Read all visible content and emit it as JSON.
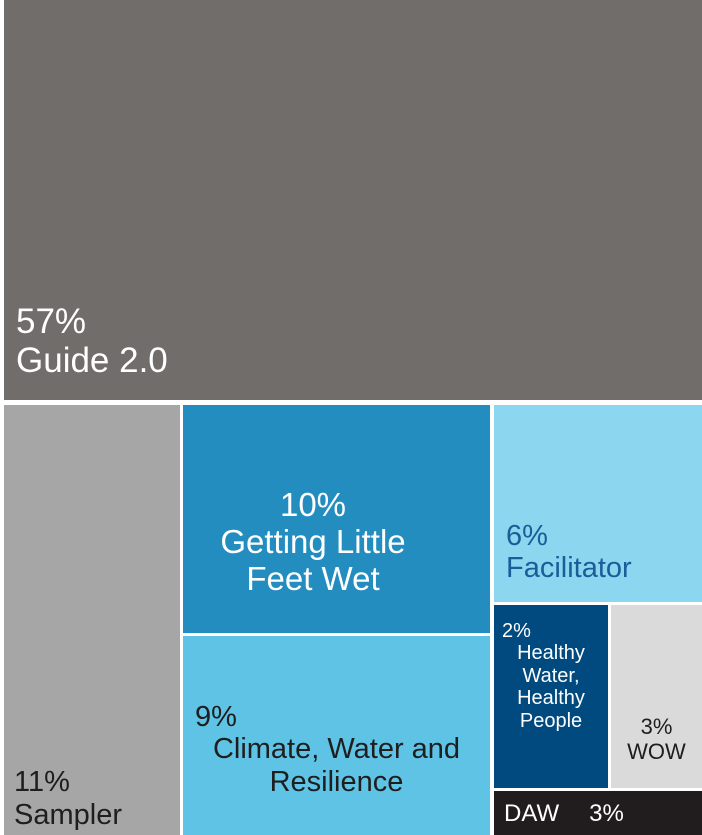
{
  "chart_data": {
    "type": "treemap",
    "title": "",
    "unit": "%",
    "cells": [
      {
        "id": "guide",
        "name": "Guide 2.0",
        "value": 57,
        "value_label": "57%",
        "color": "#716d6b",
        "text_color": "#ffffff"
      },
      {
        "id": "sampler",
        "name": "Sampler",
        "value": 11,
        "value_label": "11%",
        "color": "#a6a6a6",
        "text_color": "#1e1e1e"
      },
      {
        "id": "little-feet",
        "name": "Getting Little Feet Wet",
        "value": 10,
        "value_label": "10%",
        "color": "#238dc0",
        "text_color": "#ffffff"
      },
      {
        "id": "climate",
        "name": "Climate, Water and Resilience",
        "value": 9,
        "value_label": "9%",
        "color": "#5fc3e6",
        "text_color": "#1e1e1e"
      },
      {
        "id": "facilitator",
        "name": "Facilitator",
        "value": 6,
        "value_label": "6%",
        "color": "#8dd6f0",
        "text_color": "#1a5d99"
      },
      {
        "id": "healthy",
        "name": "Healthy Water, Healthy People",
        "value": 2,
        "value_label": "2%",
        "color": "#004a80",
        "text_color": "#ffffff"
      },
      {
        "id": "wow",
        "name": "WOW",
        "value": 3,
        "value_label": "3%",
        "color": "#dadada",
        "text_color": "#1e1e1e"
      },
      {
        "id": "daw",
        "name": "DAW",
        "value": 3,
        "value_label": "3%",
        "color": "#211d1e",
        "text_color": "#ffffff"
      }
    ]
  }
}
